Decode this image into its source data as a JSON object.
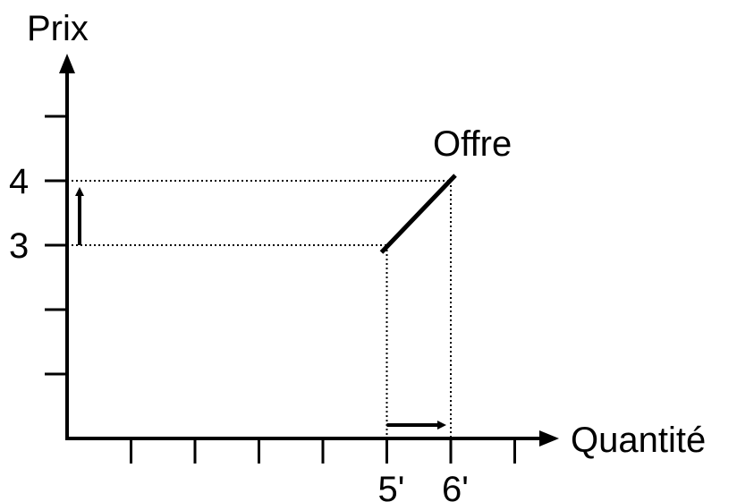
{
  "chart_data": {
    "type": "line",
    "ylabel": "Prix",
    "xlabel": "Quantité",
    "y_tick_labels": [
      {
        "value": 3,
        "label": "3"
      },
      {
        "value": 4,
        "label": "4"
      }
    ],
    "x_tick_labels": [
      {
        "value": 5,
        "label": "5'"
      },
      {
        "value": 6,
        "label": "6'"
      }
    ],
    "series": [
      {
        "name": "Offre",
        "points": [
          {
            "x": 5,
            "y": 3
          },
          {
            "x": 6,
            "y": 4
          }
        ]
      }
    ],
    "xlim": [
      0,
      7
    ],
    "ylim": [
      0,
      6
    ],
    "x_ticks": [
      1,
      2,
      3,
      4,
      5,
      6,
      7
    ],
    "y_ticks": [
      1,
      2,
      3,
      4,
      5
    ],
    "annotations": [
      {
        "kind": "arrow-up",
        "from": 3,
        "to": 4,
        "axis": "y"
      },
      {
        "kind": "arrow-right",
        "from": 5,
        "to": 6,
        "axis": "x"
      }
    ],
    "grid": false,
    "colors": {
      "line": "#000000",
      "guides": "#000000"
    }
  }
}
